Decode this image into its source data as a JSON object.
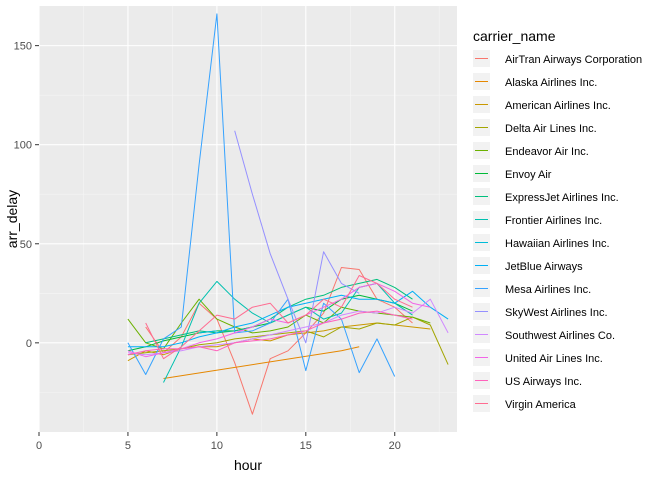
{
  "chart_data": {
    "type": "line",
    "xlabel": "hour",
    "ylabel": "arr_delay",
    "legend_title": "carrier_name",
    "legend_position": "right",
    "grid": true,
    "xlim": [
      0,
      23.5
    ],
    "ylim": [
      -45,
      170
    ],
    "x_ticks": [
      0,
      5,
      10,
      15,
      20
    ],
    "y_ticks": [
      0,
      50,
      100,
      150
    ],
    "series": [
      {
        "name": "AirTran Airways Corporation",
        "color": "#F8766D",
        "x": [
          6,
          7,
          8,
          9,
          10,
          11,
          12,
          13,
          14,
          15,
          16,
          17,
          18,
          19,
          20,
          21
        ],
        "y": [
          8,
          -5,
          3,
          20,
          12,
          -10,
          -36,
          -8,
          -4,
          5,
          15,
          38,
          37,
          22,
          18,
          10
        ]
      },
      {
        "name": "Alaska Airlines Inc.",
        "color": "#E58700",
        "x": [
          7,
          17,
          18
        ],
        "y": [
          -18,
          -4,
          -2
        ]
      },
      {
        "name": "American Airlines Inc.",
        "color": "#C99800",
        "x": [
          5,
          6,
          7,
          8,
          9,
          10,
          11,
          12,
          13,
          14,
          15,
          16,
          17,
          18,
          19,
          20,
          21,
          22
        ],
        "y": [
          -9,
          -4,
          -6,
          -3,
          -2,
          -2,
          0,
          2,
          1,
          4,
          5,
          6,
          8,
          9,
          10,
          9,
          8,
          7
        ]
      },
      {
        "name": "Delta Air Lines Inc.",
        "color": "#A3A500",
        "x": [
          5,
          6,
          7,
          8,
          9,
          10,
          11,
          12,
          13,
          14,
          15,
          16,
          17,
          18,
          19,
          20,
          21,
          22,
          23
        ],
        "y": [
          -6,
          -5,
          -4,
          -3,
          -1,
          0,
          2,
          3,
          4,
          5,
          6,
          3,
          8,
          7,
          10,
          9,
          13,
          9,
          -11
        ]
      },
      {
        "name": "Endeavor Air Inc.",
        "color": "#6BB100",
        "x": [
          5,
          6,
          7,
          8,
          9,
          10,
          11,
          12,
          13,
          14,
          15,
          16,
          17,
          18,
          19,
          20,
          21,
          22
        ],
        "y": [
          12,
          0,
          -3,
          10,
          22,
          12,
          8,
          5,
          6,
          8,
          14,
          10,
          18,
          16,
          15,
          14,
          13,
          10
        ]
      },
      {
        "name": "Envoy Air",
        "color": "#00BA38",
        "x": [
          5,
          6,
          7,
          8,
          9,
          10,
          11,
          12,
          13,
          14,
          15,
          16,
          17,
          18,
          19,
          20,
          21
        ],
        "y": [
          -4,
          -2,
          1,
          3,
          5,
          6,
          6,
          8,
          10,
          14,
          18,
          16,
          22,
          24,
          22,
          20,
          16
        ]
      },
      {
        "name": "ExpressJet Airlines Inc.",
        "color": "#00BF7D",
        "x": [
          6,
          7,
          8,
          9,
          10,
          11,
          12,
          13,
          14,
          15,
          16,
          17,
          18,
          19,
          20,
          21
        ],
        "y": [
          0,
          2,
          4,
          6,
          5,
          6,
          8,
          12,
          18,
          22,
          24,
          28,
          30,
          32,
          28,
          22
        ]
      },
      {
        "name": "Frontier Airlines Inc.",
        "color": "#00C0AF",
        "x": [
          7,
          8,
          9,
          10,
          11,
          12,
          13,
          14,
          15,
          16,
          17,
          18,
          19,
          20,
          21
        ],
        "y": [
          -20,
          -2,
          20,
          31,
          22,
          15,
          10,
          14,
          18,
          12,
          15,
          28,
          30,
          20,
          14
        ]
      },
      {
        "name": "Hawaiian Airlines Inc.",
        "color": "#00BCD8",
        "x": [
          9,
          10
        ],
        "y": [
          5,
          6
        ]
      },
      {
        "name": "JetBlue Airways",
        "color": "#00B0F6",
        "x": [
          5,
          6,
          7,
          8,
          9,
          10,
          11,
          12,
          13,
          14,
          15,
          16,
          17,
          18,
          19,
          20,
          21,
          22,
          23
        ],
        "y": [
          -2,
          -2,
          -2,
          0,
          3,
          5,
          8,
          10,
          14,
          18,
          20,
          22,
          24,
          22,
          22,
          20,
          26,
          18,
          12
        ]
      },
      {
        "name": "Mesa Airlines Inc.",
        "color": "#35A2FF",
        "x": [
          5,
          6,
          7,
          8,
          9,
          10,
          11,
          12,
          13,
          14,
          15,
          16,
          17,
          18,
          19,
          20
        ],
        "y": [
          0,
          -16,
          2,
          8,
          90,
          166,
          5,
          6,
          10,
          22,
          -14,
          20,
          12,
          -15,
          2,
          -17
        ]
      },
      {
        "name": "SkyWest Airlines Inc.",
        "color": "#9590FF",
        "x": [
          11,
          12,
          13,
          14,
          15,
          16,
          17,
          18
        ],
        "y": [
          107,
          75,
          45,
          22,
          0,
          46,
          30,
          25
        ]
      },
      {
        "name": "Southwest Airlines Co.",
        "color": "#D089FF",
        "x": [
          5,
          6,
          7,
          8,
          9,
          10,
          11,
          12,
          13,
          14,
          15,
          16,
          17,
          18,
          19,
          20,
          21,
          22,
          23
        ],
        "y": [
          -5,
          -6,
          -5,
          -4,
          -2,
          -1,
          0,
          2,
          4,
          6,
          8,
          10,
          14,
          16,
          15,
          18,
          15,
          22,
          5
        ]
      },
      {
        "name": "United Air Lines Inc.",
        "color": "#F265E7",
        "x": [
          5,
          6,
          7,
          8,
          9,
          10,
          11,
          12,
          13,
          14,
          15,
          16,
          17,
          18,
          19,
          20,
          21,
          22
        ],
        "y": [
          -4,
          -7,
          -5,
          -3,
          0,
          2,
          5,
          8,
          12,
          10,
          14,
          18,
          22,
          28,
          30,
          26,
          20,
          18
        ]
      },
      {
        "name": "US Airways Inc.",
        "color": "#FF62BC",
        "x": [
          5,
          6,
          7,
          8,
          9,
          10,
          11,
          12,
          13,
          14,
          15,
          16,
          17,
          18,
          19,
          20,
          21
        ],
        "y": [
          -6,
          -4,
          -3,
          -3,
          -2,
          -4,
          0,
          1,
          2,
          4,
          6,
          10,
          12,
          15,
          16,
          14,
          12
        ]
      },
      {
        "name": "Virgin America",
        "color": "#FF6C91",
        "x": [
          6,
          7,
          8,
          9,
          10,
          11,
          12,
          13,
          14,
          15,
          16,
          17,
          18,
          19,
          20,
          21
        ],
        "y": [
          10,
          -8,
          -2,
          6,
          14,
          12,
          18,
          20,
          10,
          14,
          22,
          18,
          34,
          30,
          22,
          18
        ]
      }
    ]
  }
}
